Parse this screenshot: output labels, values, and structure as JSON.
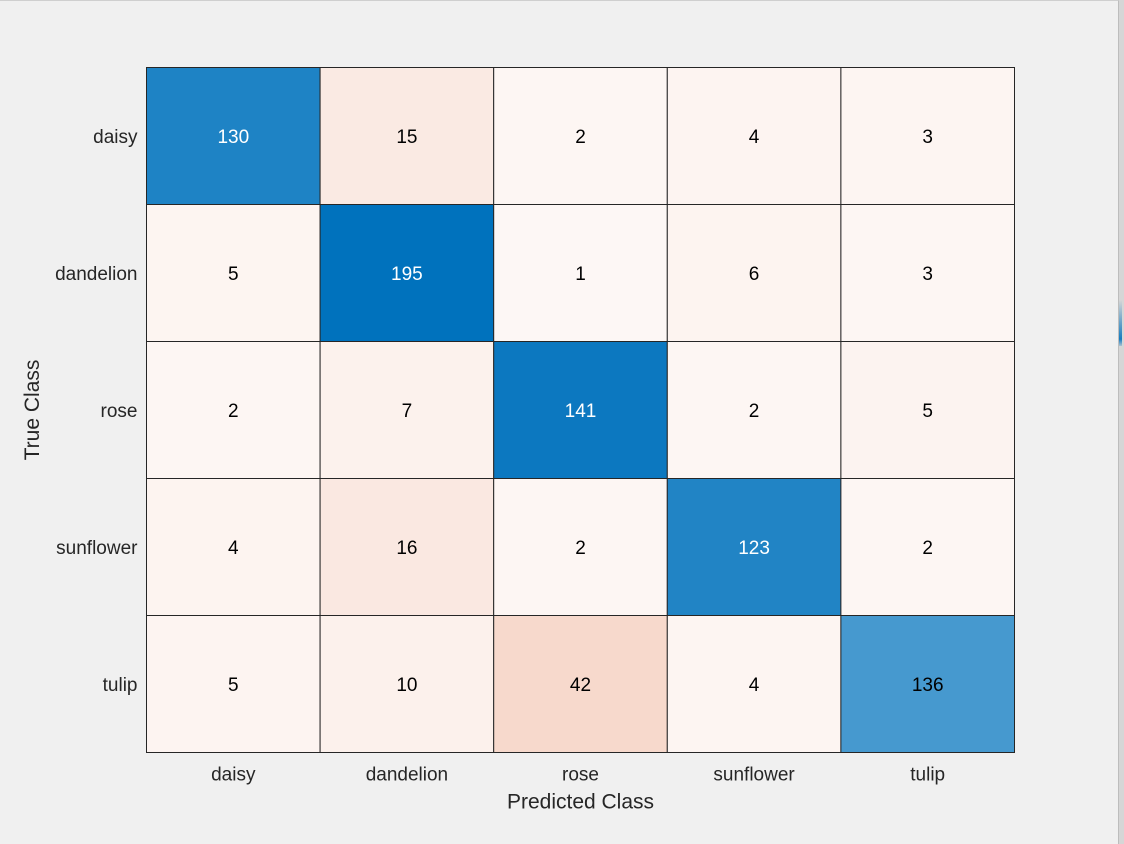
{
  "chart_data": {
    "type": "heatmap",
    "title": "",
    "xlabel": "Predicted Class",
    "ylabel": "True Class",
    "x_categories": [
      "daisy",
      "dandelion",
      "rose",
      "sunflower",
      "tulip"
    ],
    "y_categories": [
      "daisy",
      "dandelion",
      "rose",
      "sunflower",
      "tulip"
    ],
    "values": [
      [
        130,
        15,
        2,
        4,
        3
      ],
      [
        5,
        195,
        1,
        6,
        3
      ],
      [
        2,
        7,
        141,
        2,
        5
      ],
      [
        4,
        16,
        2,
        123,
        2
      ],
      [
        5,
        10,
        42,
        4,
        136
      ]
    ],
    "colors": {
      "diagonal": "#0072bd",
      "off_diagonal": "#d95319",
      "background": "#f0f0f0",
      "grid_line": "#262626"
    }
  }
}
